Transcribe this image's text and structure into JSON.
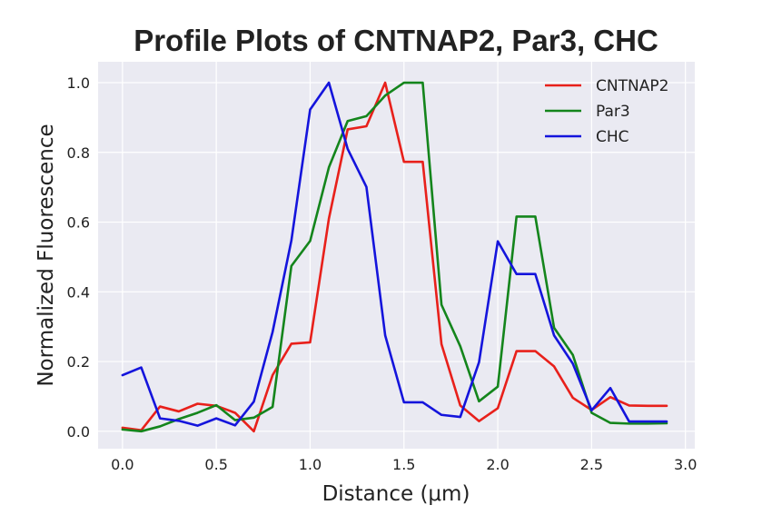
{
  "chart_data": {
    "type": "line",
    "title": "Profile Plots of CNTNAP2, Par3, CHC",
    "xlabel": "Distance (μm)",
    "ylabel": "Normalized Fluorescence",
    "xlim": [
      -0.13,
      3.05
    ],
    "ylim": [
      -0.05,
      1.06
    ],
    "x_ticks": [
      0.0,
      0.5,
      1.0,
      1.5,
      2.0,
      2.5,
      3.0
    ],
    "x_tick_labels": [
      "0.0",
      "0.5",
      "1.0",
      "1.5",
      "2.0",
      "2.5",
      "3.0"
    ],
    "y_ticks": [
      0.0,
      0.2,
      0.4,
      0.6,
      0.8,
      1.0
    ],
    "y_tick_labels": [
      "0.0",
      "0.2",
      "0.4",
      "0.6",
      "0.8",
      "1.0"
    ],
    "grid": true,
    "legend_position": "top-right",
    "x": [
      0.0,
      0.1,
      0.2,
      0.3,
      0.4,
      0.5,
      0.6,
      0.7,
      0.8,
      0.9,
      1.0,
      1.1,
      1.2,
      1.3,
      1.4,
      1.5,
      1.6,
      1.7,
      1.8,
      1.9,
      2.0,
      2.1,
      2.2,
      2.3,
      2.4,
      2.5,
      2.6,
      2.7,
      2.8,
      2.9
    ],
    "series": [
      {
        "name": "CNTNAP2",
        "color": "#e8201b",
        "values": [
          0.01,
          0.003,
          0.071,
          0.057,
          0.079,
          0.073,
          0.053,
          0.0,
          0.161,
          0.251,
          0.255,
          0.61,
          0.866,
          0.875,
          1.0,
          0.773,
          0.773,
          0.25,
          0.074,
          0.029,
          0.066,
          0.23,
          0.23,
          0.186,
          0.096,
          0.061,
          0.098,
          0.074,
          0.073,
          0.073
        ]
      },
      {
        "name": "Par3",
        "color": "#14851c",
        "values": [
          0.005,
          0.0,
          0.014,
          0.035,
          0.053,
          0.075,
          0.032,
          0.039,
          0.07,
          0.474,
          0.546,
          0.757,
          0.89,
          0.904,
          0.963,
          1.0,
          1.0,
          0.363,
          0.244,
          0.086,
          0.128,
          0.616,
          0.616,
          0.297,
          0.219,
          0.053,
          0.024,
          0.022,
          0.022,
          0.023
        ]
      },
      {
        "name": "CHC",
        "color": "#1414dc",
        "values": [
          0.161,
          0.183,
          0.037,
          0.03,
          0.016,
          0.037,
          0.017,
          0.085,
          0.285,
          0.547,
          0.923,
          1.0,
          0.81,
          0.701,
          0.275,
          0.083,
          0.083,
          0.047,
          0.041,
          0.198,
          0.545,
          0.451,
          0.451,
          0.275,
          0.194,
          0.06,
          0.124,
          0.028,
          0.028,
          0.028
        ]
      }
    ]
  }
}
